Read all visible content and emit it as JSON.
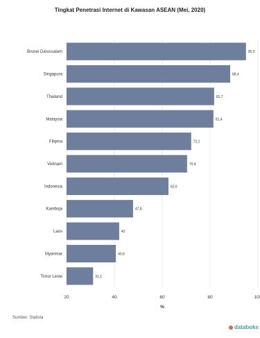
{
  "chart_data": {
    "type": "bar",
    "orientation": "horizontal",
    "title": "Tingkat Penetrasi Internet di Kawasan ASEAN (Mei, 2020)",
    "categories": [
      "Brunei Darussalam",
      "Singapura",
      "Thailand",
      "Malaysia",
      "Filipina",
      "Vietnam",
      "Indonesia",
      "Kamboja",
      "Laos",
      "Myanmar",
      "Timor Leste"
    ],
    "values": [
      95.0,
      88.4,
      81.7,
      81.4,
      72.1,
      70.4,
      62.6,
      47.8,
      42,
      40.6,
      31.1
    ],
    "value_labels": [
      "95,0",
      "88,4",
      "81,7",
      "81,4",
      "72,1",
      "70,4",
      "62,6",
      "47,8",
      "42",
      "40,6",
      "31,1"
    ],
    "xlabel": "%",
    "xlim": [
      20,
      100
    ],
    "xticks": [
      20,
      40,
      60,
      80,
      100
    ],
    "bar_color": "#6e7f9e",
    "grid": true
  },
  "source": "Sumber: Statista",
  "brand": "databoks"
}
